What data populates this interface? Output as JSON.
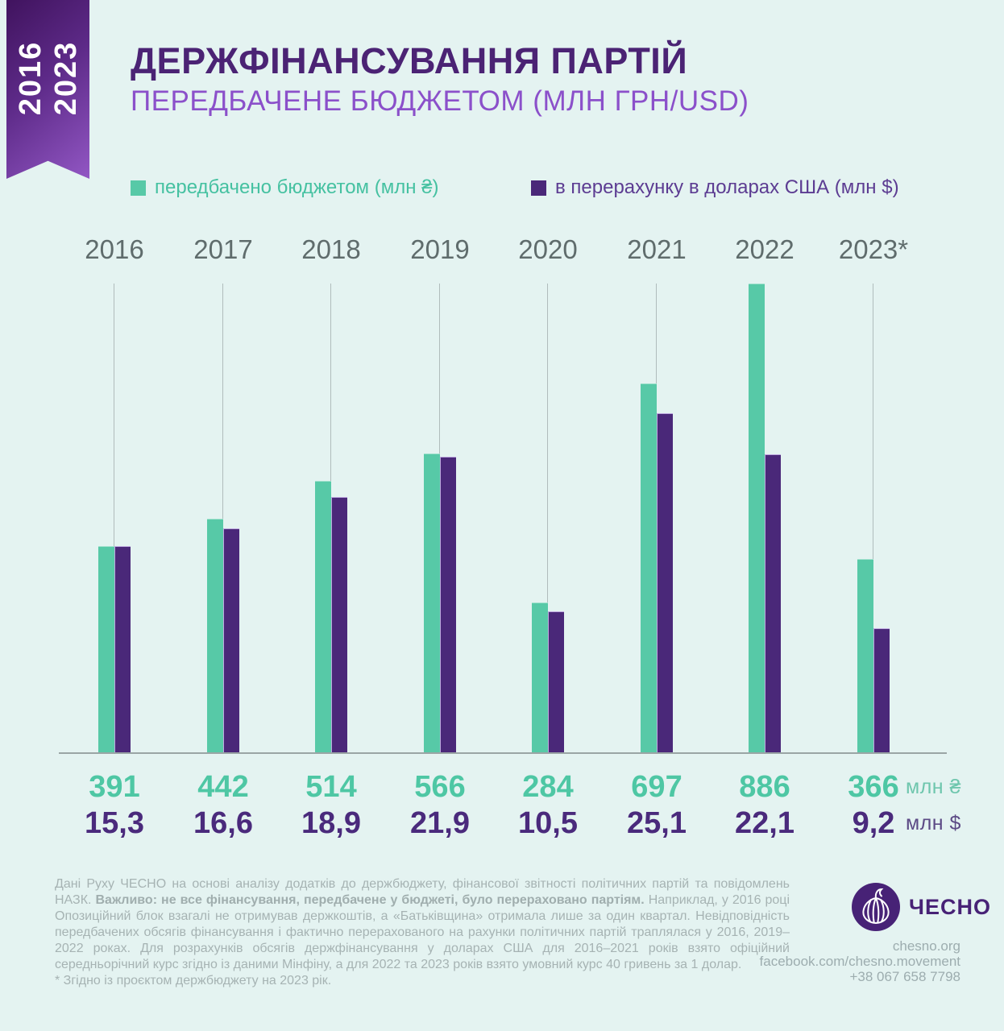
{
  "ribbon": {
    "year_from": "2016",
    "year_to": "2023"
  },
  "header": {
    "title": "ДЕРЖФІНАНСУВАННЯ ПАРТІЙ",
    "subtitle": "ПЕРЕДБАЧЕНЕ БЮДЖЕТОМ (МЛН ГРН/USD)"
  },
  "chart_data": {
    "type": "bar",
    "title": "ДЕРЖФІНАНСУВАННЯ ПАРТІЙ — ПЕРЕДБАЧЕНЕ БЮДЖЕТОМ (МЛН ГРН/USD)",
    "categories": [
      "2016",
      "2017",
      "2018",
      "2019",
      "2020",
      "2021",
      "2022",
      "2023*"
    ],
    "series": [
      {
        "name": "передбачено бюджетом (млн ₴)",
        "values": [
          391,
          442,
          514,
          566,
          284,
          697,
          886,
          366
        ],
        "labels": [
          "391",
          "442",
          "514",
          "566",
          "284",
          "697",
          "886",
          "366"
        ],
        "color": "#57c9a7"
      },
      {
        "name": "в перерахунку в доларах США (млн $)",
        "values": [
          15.3,
          16.6,
          18.9,
          21.9,
          10.5,
          25.1,
          22.1,
          9.2
        ],
        "labels": [
          "15,3",
          "16,6",
          "18,9",
          "21,9",
          "10,5",
          "25,1",
          "22,1",
          "9,2"
        ],
        "color": "#4a2879"
      }
    ],
    "units": {
      "uah": "млн ₴",
      "usd": "млн $"
    },
    "legend_position": "top",
    "grid": "vertical line per category",
    "value_labels_position": "below baseline"
  },
  "footer": {
    "note_part1": "Дані Руху ЧЕСНО на основі аналізу додатків до держбюджету, фінансової звітності політичних партій та повідомлень НАЗК. ",
    "note_bold": "Важливо: не все фінансування, передбачене у бюджеті, було перераховано партіям.",
    "note_part2": " Наприклад, у 2016 році Опозиційний блок взагалі не отримував держкоштів, а «Батьківщина» отримала лише за один квартал. Невідповідність передбачених обсягів фінансування і фактично перерахованого на рахунки політичних партій траплялася у 2016, 2019–2022 роках. Для розрахунків обсягів держфінансування у доларах США для 2016–2021 років взято офіційний середньорічний курс згідно із даними Мінфіну, а для 2022 та 2023 років взято умовний курс 40 гривень за 1 долар.",
    "footnote": "* Згідно із проєктом держбюджету на 2023 рік.",
    "brand": "ЧЕСНО",
    "website": "chesno.org",
    "facebook": "facebook.com/chesno.movement",
    "phone": "+38 067 658 7798"
  }
}
